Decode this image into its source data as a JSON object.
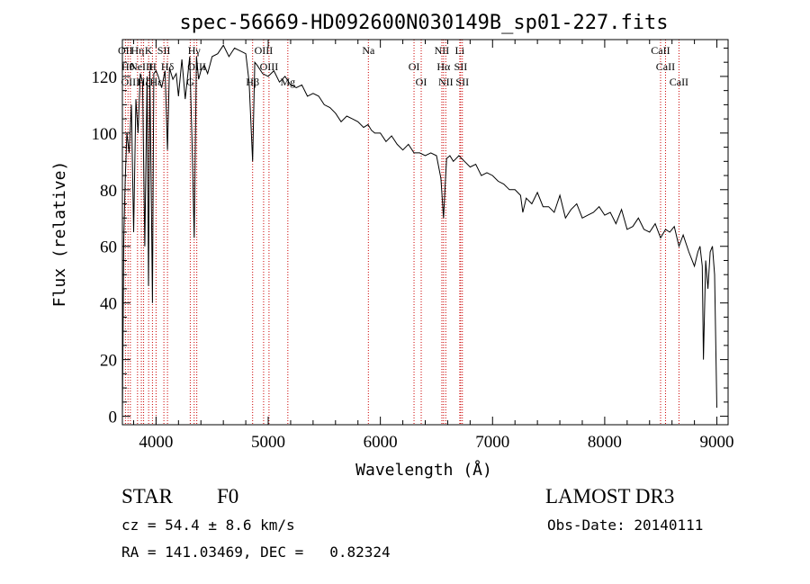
{
  "chart_data": {
    "type": "line",
    "title": "spec-56669-HD092600N030149B_sp01-227.fits",
    "xlabel": "Wavelength (Å)",
    "ylabel": "Flux (relative)",
    "xlim": [
      3700,
      9100
    ],
    "ylim": [
      -3,
      133
    ],
    "xticks": [
      4000,
      5000,
      6000,
      7000,
      8000,
      9000
    ],
    "yticks": [
      0,
      20,
      40,
      60,
      80,
      100,
      120
    ],
    "series": [
      {
        "name": "spectrum",
        "x": [
          3700,
          3712,
          3725,
          3740,
          3760,
          3780,
          3800,
          3820,
          3840,
          3860,
          3880,
          3900,
          3920,
          3933,
          3945,
          3960,
          3968,
          3980,
          4000,
          4020,
          4050,
          4080,
          4102,
          4120,
          4150,
          4180,
          4200,
          4230,
          4260,
          4300,
          4320,
          4340,
          4360,
          4380,
          4400,
          4430,
          4460,
          4500,
          4550,
          4600,
          4650,
          4700,
          4750,
          4800,
          4830,
          4861,
          4880,
          4900,
          4950,
          5000,
          5050,
          5100,
          5150,
          5200,
          5250,
          5300,
          5350,
          5400,
          5450,
          5500,
          5550,
          5600,
          5650,
          5700,
          5750,
          5800,
          5850,
          5890,
          5920,
          5950,
          6000,
          6050,
          6100,
          6150,
          6200,
          6250,
          6300,
          6350,
          6400,
          6450,
          6500,
          6540,
          6563,
          6590,
          6620,
          6650,
          6700,
          6750,
          6800,
          6850,
          6900,
          6950,
          7000,
          7050,
          7100,
          7150,
          7200,
          7250,
          7270,
          7300,
          7350,
          7400,
          7450,
          7500,
          7550,
          7600,
          7650,
          7700,
          7750,
          7800,
          7850,
          7900,
          7950,
          8000,
          8050,
          8100,
          8150,
          8200,
          8250,
          8300,
          8350,
          8400,
          8450,
          8498,
          8542,
          8580,
          8620,
          8662,
          8700,
          8750,
          8800,
          8830,
          8850,
          8870,
          8880,
          8900,
          8920,
          8940,
          8960,
          8980,
          9000
        ],
        "values": [
          -1,
          62,
          83,
          100,
          93,
          110,
          65,
          112,
          100,
          121,
          118,
          60,
          120,
          46,
          122,
          70,
          40,
          121,
          122,
          120,
          116,
          122,
          94,
          123,
          119,
          121,
          113,
          126,
          112,
          127,
          98,
          63,
          127,
          119,
          122,
          124,
          121,
          127,
          128,
          131,
          127,
          130,
          129,
          128,
          118,
          90,
          125,
          124,
          121,
          120,
          122,
          118,
          120,
          117,
          116,
          117,
          113,
          114,
          113,
          110,
          109,
          107,
          104,
          106,
          105,
          104,
          102,
          103,
          101,
          100,
          100,
          97,
          99,
          96,
          94,
          96,
          93,
          93,
          92,
          93,
          92,
          84,
          70,
          91,
          92,
          90,
          92,
          90,
          88,
          89,
          85,
          86,
          85,
          83,
          82,
          80,
          80,
          78,
          72,
          77,
          75,
          79,
          74,
          74,
          72,
          78,
          70,
          73,
          75,
          70,
          71,
          72,
          74,
          71,
          72,
          68,
          73,
          66,
          67,
          70,
          66,
          65,
          68,
          63,
          66,
          65,
          67,
          60,
          64,
          58,
          53,
          58,
          60,
          53,
          20,
          55,
          45,
          58,
          60,
          50,
          3
        ]
      }
    ],
    "line_markers": [
      {
        "wave": 3727,
        "label": "OII"
      },
      {
        "wave": 3750,
        "label": "Hθ"
      },
      {
        "wave": 3771,
        "label": "OIII"
      },
      {
        "wave": 3835,
        "label": "Hη"
      },
      {
        "wave": 3869,
        "label": "NeIII"
      },
      {
        "wave": 3889,
        "label": "Hζ"
      },
      {
        "wave": 3934,
        "label": "K"
      },
      {
        "wave": 3968,
        "label": "H"
      },
      {
        "wave": 4000,
        "label": "Hε"
      },
      {
        "wave": 4070,
        "label": "SII"
      },
      {
        "wave": 4102,
        "label": "Hδ"
      },
      {
        "wave": 4305,
        "label": "G"
      },
      {
        "wave": 4340,
        "label": "Hγ"
      },
      {
        "wave": 4363,
        "label": "OIII"
      },
      {
        "wave": 4861,
        "label": "Hβ"
      },
      {
        "wave": 4959,
        "label": "OIII"
      },
      {
        "wave": 5007,
        "label": "OIII"
      },
      {
        "wave": 5175,
        "label": "Mg"
      },
      {
        "wave": 5893,
        "label": "Na"
      },
      {
        "wave": 6300,
        "label": "OI"
      },
      {
        "wave": 6364,
        "label": "OI"
      },
      {
        "wave": 6548,
        "label": "NII"
      },
      {
        "wave": 6563,
        "label": "Hα"
      },
      {
        "wave": 6583,
        "label": "NII"
      },
      {
        "wave": 6708,
        "label": "Li"
      },
      {
        "wave": 6716,
        "label": "SII"
      },
      {
        "wave": 6731,
        "label": "SII"
      },
      {
        "wave": 8498,
        "label": "CaII"
      },
      {
        "wave": 8542,
        "label": "CaII"
      },
      {
        "wave": 8662,
        "label": "CaII"
      }
    ],
    "colors": {
      "spectrum": "#000000",
      "markers": "#cc0000",
      "axes": "#000000"
    }
  },
  "info": {
    "class_label": "STAR",
    "subclass": "F0",
    "survey": "LAMOST DR3",
    "redshift": "cz = 54.4 ± 8.6 km/s",
    "obs_date": "Obs-Date: 20140111",
    "coords": "RA = 141.03469, DEC =   0.82324"
  }
}
